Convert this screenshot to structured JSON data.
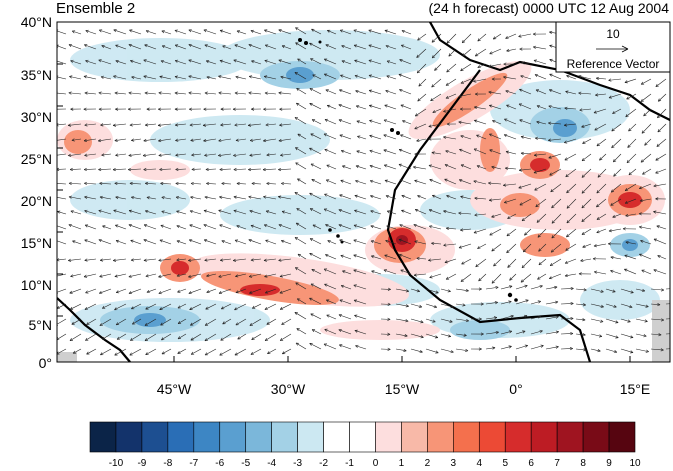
{
  "header": {
    "left_title": "Ensemble 2",
    "right_title": "(24 h forecast) 0000 UTC 12 Aug 2004"
  },
  "map": {
    "lat_labels": [
      "40°N",
      "35°N",
      "30°N",
      "25°N",
      "20°N",
      "15°N",
      "10°N",
      "5°N",
      "0°"
    ],
    "lon_labels": [
      "45°W",
      "30°W",
      "15°W",
      "0°",
      "15°E"
    ],
    "reference_vector": {
      "magnitude": "10",
      "label": "Reference Vector"
    }
  },
  "colorbar": {
    "labels": [
      "-10",
      "-9",
      "-8",
      "-7",
      "-6",
      "-5",
      "-4",
      "-3",
      "-2",
      "-1",
      "0",
      "1",
      "2",
      "3",
      "4",
      "5",
      "6",
      "7",
      "8",
      "9",
      "10"
    ],
    "colors": [
      "#0b2448",
      "#13336b",
      "#1d4f91",
      "#2a6eb6",
      "#3d86c4",
      "#5a9fd0",
      "#7bb7da",
      "#a3d1e6",
      "#cce8f2",
      "#ffffff",
      "#ffffff",
      "#fddede",
      "#f8b9a8",
      "#f79577",
      "#f4704d",
      "#ec4a35",
      "#d62c2c",
      "#bd1c24",
      "#9f1420",
      "#790b17",
      "#560510"
    ]
  }
}
